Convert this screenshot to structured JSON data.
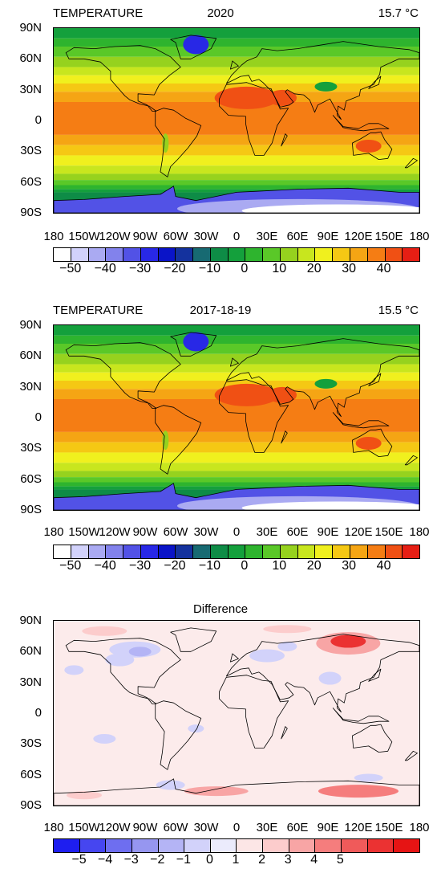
{
  "panels": [
    {
      "title_left": "TEMPERATURE",
      "title_center": "2020",
      "title_right": "15.7 °C",
      "kind": "temperature"
    },
    {
      "title_left": "TEMPERATURE",
      "title_center": "2017-18-19",
      "title_right": "15.5 °C",
      "kind": "temperature"
    },
    {
      "title_left": "",
      "title_center": "Difference",
      "title_right": "",
      "kind": "difference"
    }
  ],
  "lat_labels": [
    "90N",
    "60N",
    "30N",
    "0",
    "30S",
    "60S",
    "90S"
  ],
  "lon_labels": [
    "180",
    "150W",
    "120W",
    "90W",
    "60W",
    "30W",
    "0",
    "30E",
    "60E",
    "90E",
    "120E",
    "150E",
    "180"
  ],
  "temperature_colorbar": {
    "labels": [
      "−50",
      "−40",
      "−30",
      "−20",
      "−10",
      "0",
      "10",
      "20",
      "30",
      "40"
    ],
    "colors": [
      "#ffffff",
      "#d2d2fb",
      "#aaaaf2",
      "#8282ec",
      "#5252e6",
      "#2828e6",
      "#0a14c8",
      "#14329e",
      "#176a72",
      "#0e8c46",
      "#14a03c",
      "#2eb42e",
      "#5ac828",
      "#96d21e",
      "#c8e61e",
      "#f0f01e",
      "#f5c814",
      "#f5a514",
      "#f57d14",
      "#f05014",
      "#e61e14"
    ],
    "label_positions": [
      1,
      3,
      5,
      7,
      9,
      11,
      13,
      15,
      17,
      19
    ]
  },
  "difference_colorbar": {
    "labels": [
      "−5",
      "−4",
      "−3",
      "−2",
      "−1",
      "0",
      "1",
      "2",
      "3",
      "4",
      "5"
    ],
    "colors": [
      "#1e1ef0",
      "#4646f0",
      "#6e6ef0",
      "#9696f0",
      "#b4b4f5",
      "#d2d2fa",
      "#ebebfc",
      "#fce6e6",
      "#fccccc",
      "#f8a5a5",
      "#f57d7d",
      "#f05a5a",
      "#eb3232",
      "#e61414"
    ],
    "label_positions": [
      1,
      2,
      3,
      4,
      5,
      6,
      7,
      8,
      9,
      10,
      11
    ]
  }
}
